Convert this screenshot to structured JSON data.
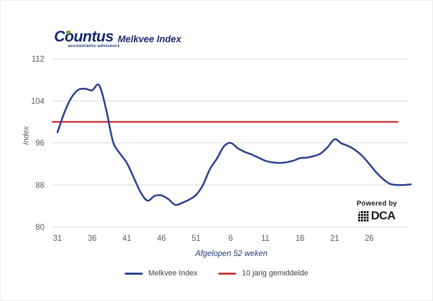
{
  "header": {
    "logo": {
      "text": "Countus",
      "tagline": "accountants·adviseurs"
    },
    "title": "Melkvee Index"
  },
  "chart_data": {
    "type": "line",
    "title": "Melkvee Index",
    "xlabel": "Afgelopen 52 weken",
    "ylabel": "Index",
    "ylim": [
      80,
      112
    ],
    "yticks": [
      80,
      88,
      96,
      104,
      112
    ],
    "xtick_labels": [
      "31",
      "36",
      "41",
      "46",
      "51",
      "6",
      "11",
      "16",
      "21",
      "26"
    ],
    "xtick_indices": [
      0,
      5,
      10,
      15,
      20,
      25,
      30,
      35,
      40,
      45
    ],
    "grid": "horizontal-only",
    "legend_position": "bottom",
    "series": [
      {
        "name": "Melkvee Index",
        "color": "#2c3f8e",
        "values": [
          98.0,
          101.8,
          104.6,
          106.1,
          106.3,
          106.0,
          107.0,
          102.5,
          96.3,
          94.0,
          92.2,
          89.4,
          86.6,
          85.0,
          85.9,
          86.0,
          85.3,
          84.2,
          84.6,
          85.2,
          86.1,
          88.0,
          91.0,
          93.0,
          95.3,
          96.0,
          95.0,
          94.3,
          93.8,
          93.2,
          92.6,
          92.3,
          92.2,
          92.3,
          92.6,
          93.1,
          93.2,
          93.5,
          94.0,
          95.2,
          96.7,
          95.9,
          95.4,
          94.6,
          93.5,
          92.0,
          90.4,
          89.1,
          88.2,
          88.0,
          88.0,
          88.1
        ]
      },
      {
        "name": "10 jarig gemiddelde",
        "color": "#c9393c",
        "constant": 100.0
      }
    ]
  },
  "branding": {
    "powered_by": "Powered by",
    "brand": "DCA"
  },
  "colors": {
    "navy": "#16276b",
    "line_blue": "#2c3f8e",
    "line_red": "#c9393c",
    "grid": "#d9d9d9",
    "tick_text": "#58595b",
    "green_accent": "#72b043"
  }
}
